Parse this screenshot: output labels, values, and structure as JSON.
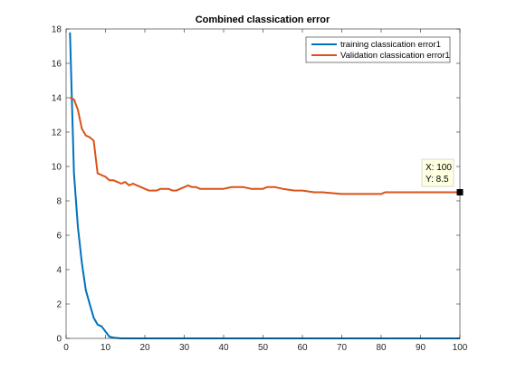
{
  "chart_data": {
    "type": "line",
    "title": "Combined classication error",
    "xlabel": "",
    "ylabel": "",
    "xlim": [
      0,
      100
    ],
    "ylim": [
      0,
      18
    ],
    "xticks": [
      0,
      10,
      20,
      30,
      40,
      50,
      60,
      70,
      80,
      90,
      100
    ],
    "yticks": [
      0,
      2,
      4,
      6,
      8,
      10,
      12,
      14,
      16,
      18
    ],
    "grid": false,
    "legend_position": "top-right",
    "series": [
      {
        "name": "training classication error1",
        "color": "#0072BD",
        "x": [
          1,
          2,
          3,
          4,
          5,
          6,
          7,
          8,
          9,
          10,
          11,
          12,
          13,
          14,
          15,
          20,
          30,
          40,
          50,
          60,
          70,
          80,
          90,
          100
        ],
        "y": [
          17.8,
          9.6,
          6.5,
          4.4,
          2.8,
          2.0,
          1.2,
          0.8,
          0.7,
          0.4,
          0.1,
          0.05,
          0.02,
          0.0,
          0.0,
          0.0,
          0.0,
          0.0,
          0.0,
          0.0,
          0.0,
          0.0,
          0.0,
          0.0
        ]
      },
      {
        "name": "Validation classication error1",
        "color": "#D95319",
        "x": [
          1,
          2,
          3,
          4,
          5,
          6,
          7,
          8,
          9,
          10,
          11,
          12,
          13,
          14,
          15,
          16,
          17,
          18,
          19,
          20,
          21,
          22,
          23,
          24,
          25,
          26,
          27,
          28,
          29,
          30,
          31,
          32,
          33,
          34,
          35,
          40,
          42,
          45,
          47,
          48,
          50,
          51,
          53,
          55,
          58,
          60,
          63,
          65,
          70,
          75,
          80,
          81,
          85,
          90,
          95,
          100
        ],
        "y": [
          14.0,
          13.9,
          13.3,
          12.2,
          11.8,
          11.7,
          11.5,
          9.6,
          9.5,
          9.4,
          9.2,
          9.2,
          9.1,
          9.0,
          9.1,
          8.9,
          9.0,
          8.9,
          8.8,
          8.7,
          8.6,
          8.6,
          8.6,
          8.7,
          8.7,
          8.7,
          8.6,
          8.6,
          8.7,
          8.8,
          8.9,
          8.8,
          8.8,
          8.7,
          8.7,
          8.7,
          8.8,
          8.8,
          8.7,
          8.7,
          8.7,
          8.8,
          8.8,
          8.7,
          8.6,
          8.6,
          8.5,
          8.5,
          8.4,
          8.4,
          8.4,
          8.5,
          8.5,
          8.5,
          8.5,
          8.5
        ]
      }
    ],
    "datatip": {
      "x": 100,
      "y": 8.5,
      "line1": "X: 100",
      "line2": "Y: 8.5"
    }
  }
}
